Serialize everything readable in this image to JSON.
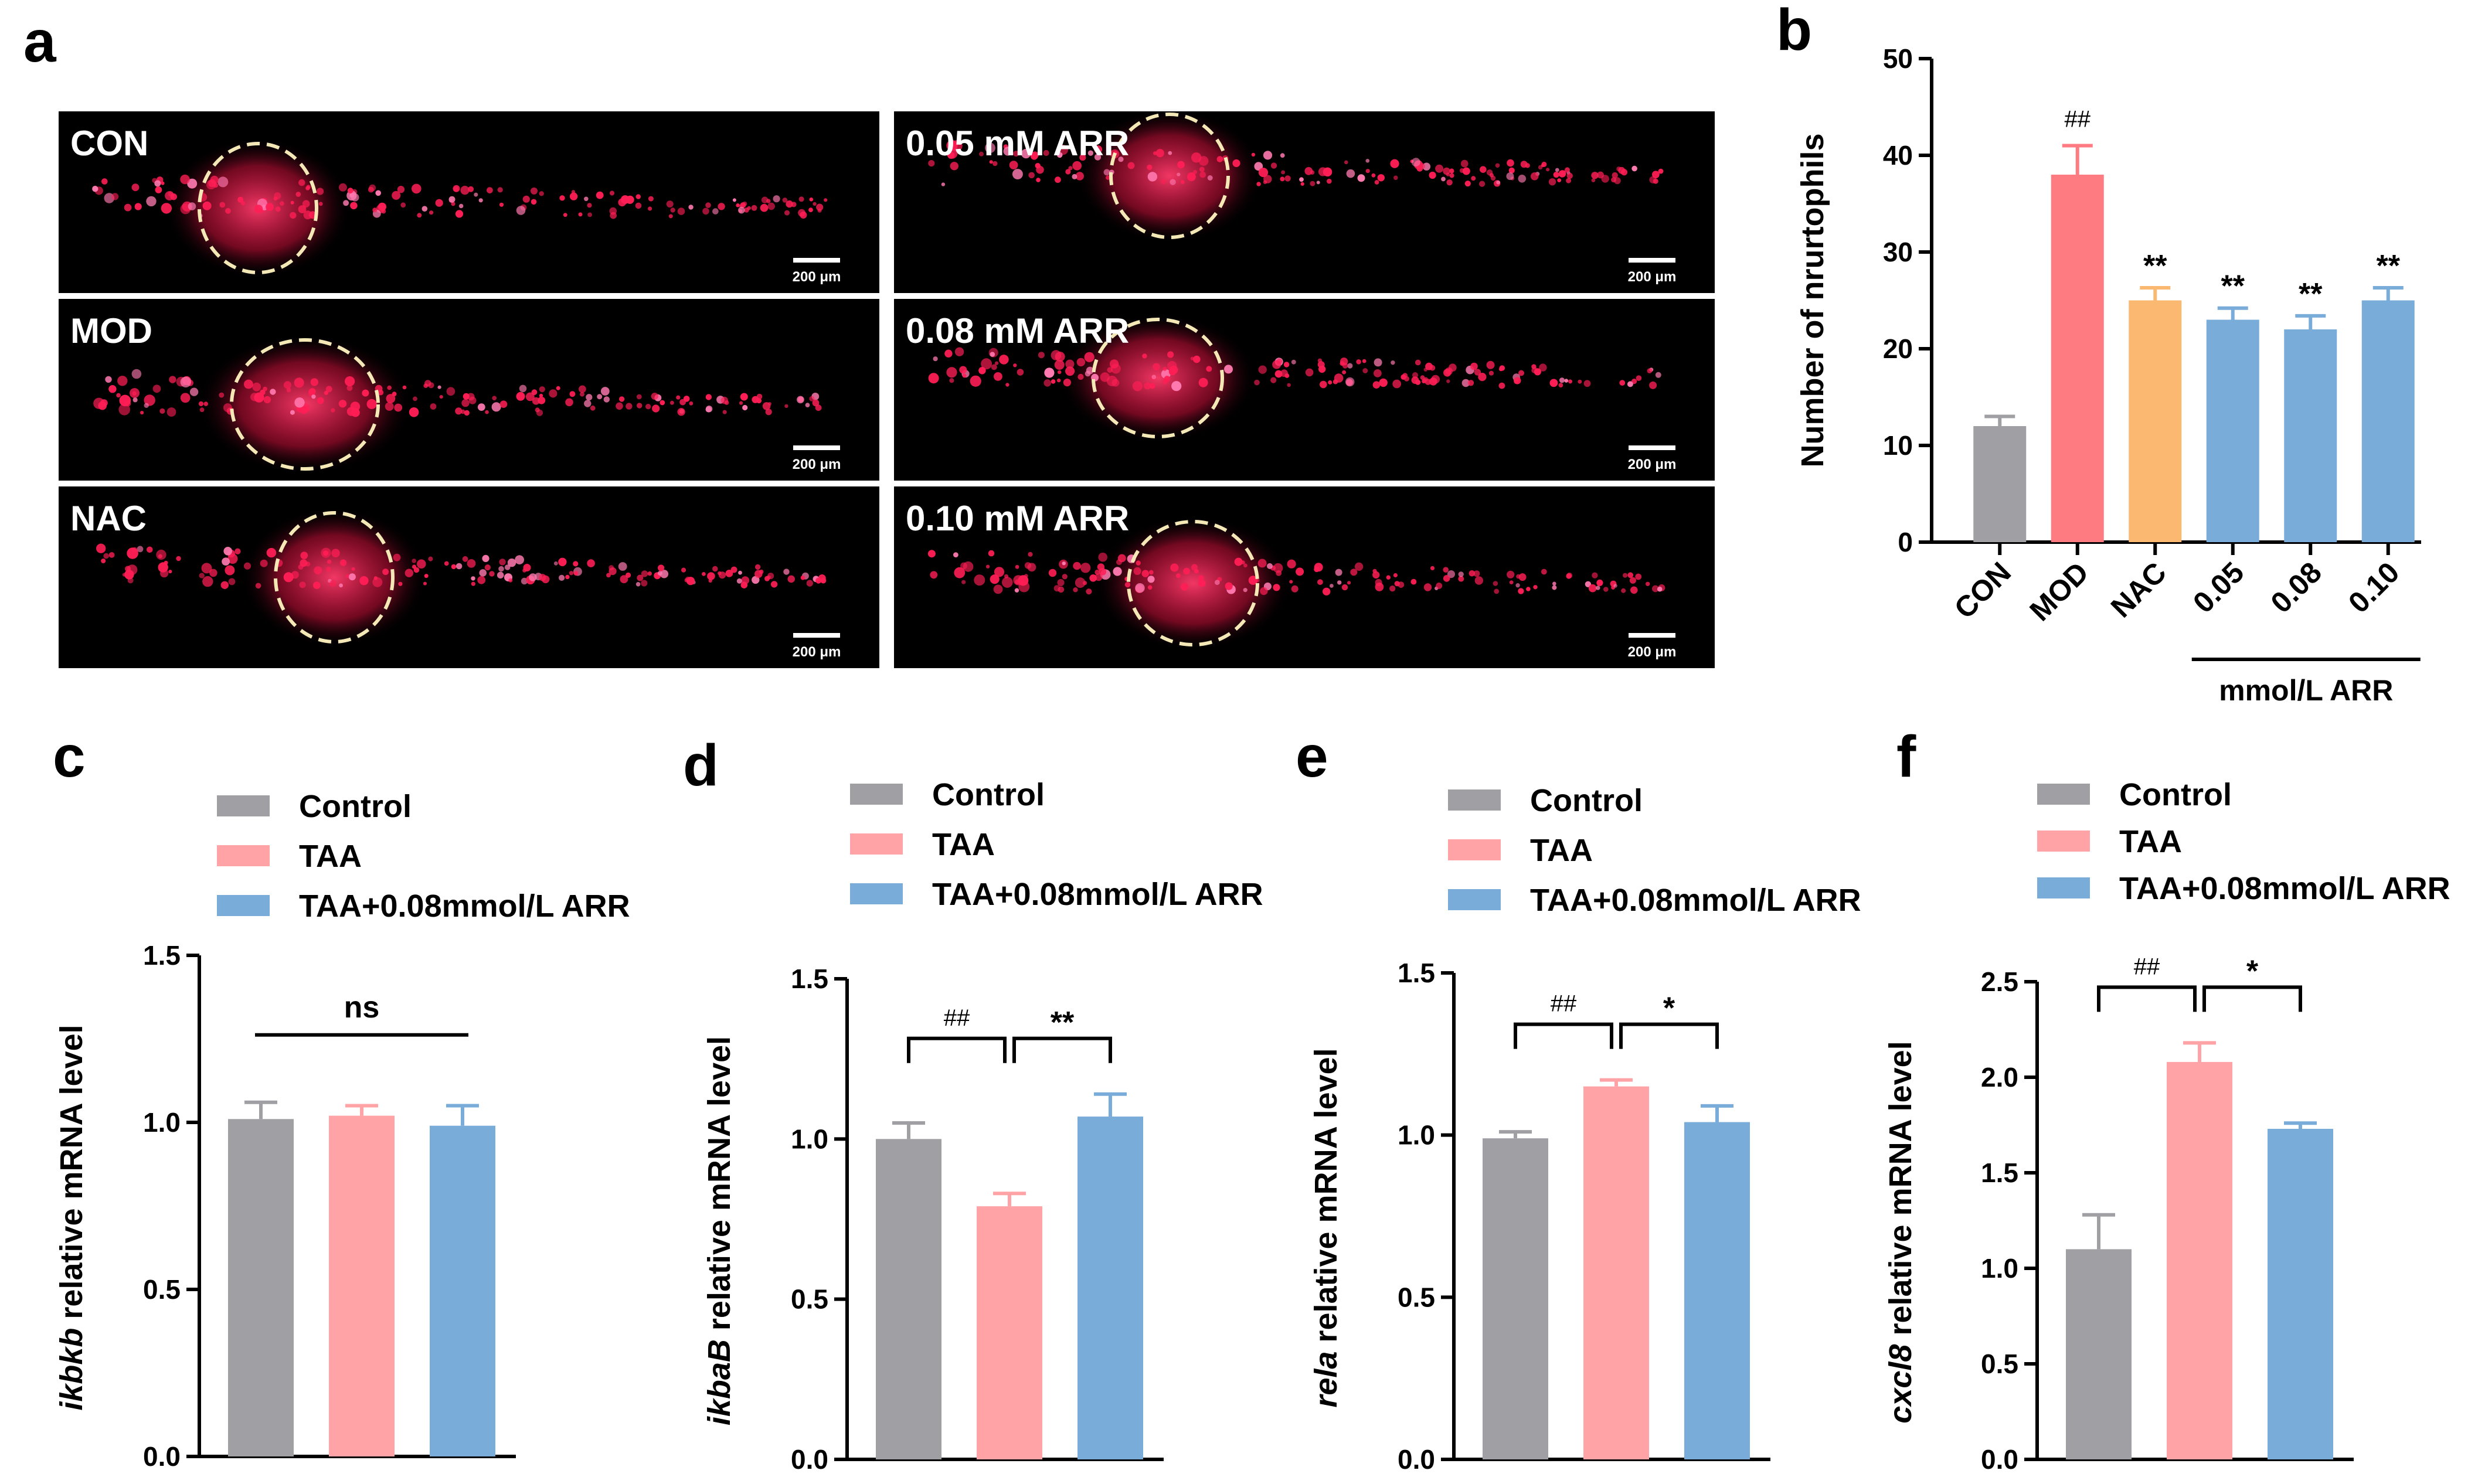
{
  "panels": {
    "a": {
      "letter": "a",
      "images": [
        {
          "label": "CON",
          "scale": "200 μm"
        },
        {
          "label": "0.05 mM ARR",
          "scale": "200 μm"
        },
        {
          "label": "MOD",
          "scale": "200 μm"
        },
        {
          "label": "0.08 mM ARR",
          "scale": "200 μm"
        },
        {
          "label": "NAC",
          "scale": "200 μm"
        },
        {
          "label": "0.10 mM ARR",
          "scale": "200 μm"
        }
      ]
    },
    "b": {
      "letter": "b",
      "group_label": "mmol/L ARR"
    },
    "c": {
      "letter": "c"
    },
    "d": {
      "letter": "d"
    },
    "e": {
      "letter": "e"
    },
    "f": {
      "letter": "f"
    }
  },
  "chart_data": [
    {
      "id": "b",
      "type": "bar",
      "ylabel": "Number of nrurtophils",
      "ylim": [
        0,
        50
      ],
      "yticks": [
        "0",
        "10",
        "20",
        "30",
        "40",
        "50"
      ],
      "categories": [
        "CON",
        "MOD",
        "NAC",
        "0.05",
        "0.08",
        "0.10"
      ],
      "values": [
        12,
        38,
        25,
        23,
        22,
        25
      ],
      "errors": [
        1,
        3,
        1.3,
        1.2,
        1.4,
        1.3
      ],
      "colors": [
        "#a0a0a4",
        "#ff7b82",
        "#fbb870",
        "#79acd9",
        "#79acd9",
        "#79acd9"
      ],
      "annotations": [
        "",
        "##",
        "**",
        "**",
        "**",
        "**"
      ]
    },
    {
      "id": "c",
      "type": "bar",
      "ylabel_gene": "ikbkb",
      "ylabel_rest": " relative mRNA level",
      "ylim": [
        0,
        1.5
      ],
      "yticks": [
        "0.0",
        "0.5",
        "1.0",
        "1.5"
      ],
      "series": [
        {
          "name": "Control",
          "value": 1.01,
          "error": 0.05,
          "color": "#a0a0a4"
        },
        {
          "name": "TAA",
          "value": 1.02,
          "error": 0.03,
          "color": "#ffa3a6"
        },
        {
          "name": "TAA+0.08mmol/L ARR",
          "value": 0.99,
          "error": 0.06,
          "color": "#79acd9"
        }
      ],
      "significance": [
        {
          "label": "ns",
          "from": 0,
          "to": 2
        }
      ]
    },
    {
      "id": "d",
      "type": "bar",
      "ylabel_gene": "ikbaB",
      "ylabel_rest": " relative mRNA level",
      "ylim": [
        0,
        1.5
      ],
      "yticks": [
        "0.0",
        "0.5",
        "1.0",
        "1.5"
      ],
      "series": [
        {
          "name": "Control",
          "value": 1.0,
          "error": 0.05,
          "color": "#a0a0a4"
        },
        {
          "name": "TAA",
          "value": 0.79,
          "error": 0.04,
          "color": "#ffa3a6"
        },
        {
          "name": "TAA+0.08mmol/L ARR",
          "value": 1.07,
          "error": 0.07,
          "color": "#79acd9"
        }
      ],
      "significance": [
        {
          "label": "##",
          "from": 0,
          "to": 1
        },
        {
          "label": "**",
          "from": 1,
          "to": 2
        }
      ]
    },
    {
      "id": "e",
      "type": "bar",
      "ylabel_gene": "rela",
      "ylabel_rest": " relative mRNA level",
      "ylim": [
        0,
        1.5
      ],
      "yticks": [
        "0.0",
        "0.5",
        "1.0",
        "1.5"
      ],
      "series": [
        {
          "name": "Control",
          "value": 0.99,
          "error": 0.02,
          "color": "#a0a0a4"
        },
        {
          "name": "TAA",
          "value": 1.15,
          "error": 0.02,
          "color": "#ffa3a6"
        },
        {
          "name": "TAA+0.08mmol/L ARR",
          "value": 1.04,
          "error": 0.05,
          "color": "#79acd9"
        }
      ],
      "significance": [
        {
          "label": "##",
          "from": 0,
          "to": 1
        },
        {
          "label": "*",
          "from": 1,
          "to": 2
        }
      ]
    },
    {
      "id": "f",
      "type": "bar",
      "ylabel_gene": "cxcl8",
      "ylabel_rest": " relative mRNA level",
      "ylim": [
        0,
        2.5
      ],
      "yticks": [
        "0.0",
        "0.5",
        "1.0",
        "1.5",
        "2.0",
        "2.5"
      ],
      "series": [
        {
          "name": "Control",
          "value": 1.1,
          "error": 0.18,
          "color": "#a0a0a4"
        },
        {
          "name": "TAA",
          "value": 2.08,
          "error": 0.1,
          "color": "#ffa3a6"
        },
        {
          "name": "TAA+0.08mmol/L ARR",
          "value": 1.73,
          "error": 0.03,
          "color": "#79acd9"
        }
      ],
      "significance": [
        {
          "label": "##",
          "from": 0,
          "to": 1
        },
        {
          "label": "*",
          "from": 1,
          "to": 2
        }
      ]
    }
  ]
}
